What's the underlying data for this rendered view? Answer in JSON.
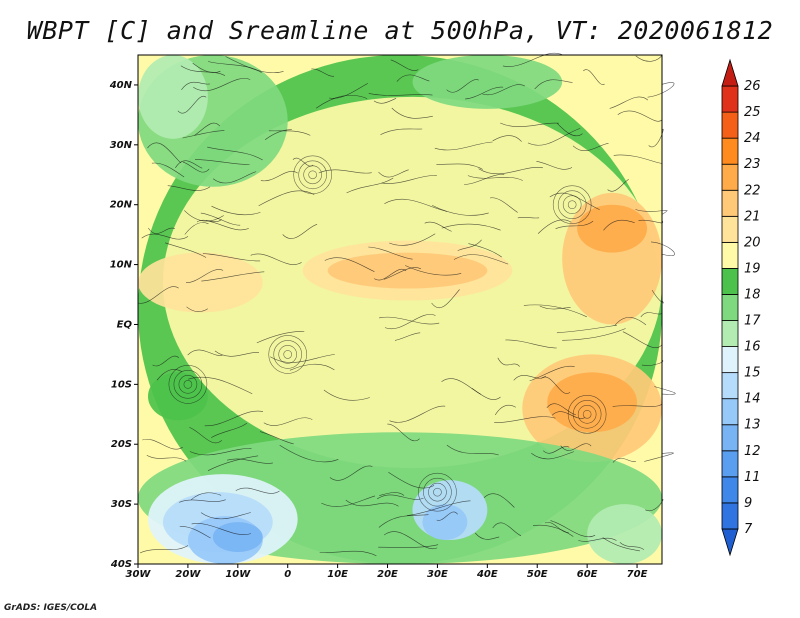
{
  "title": "WBPT [C] and Sreamline at 500hPa, VT: 2020061812",
  "credit": "GrADS: IGES/COLA",
  "map": {
    "lon_range": [
      -30,
      75
    ],
    "lat_range": [
      -40,
      45
    ],
    "lon_ticks": [
      {
        "value": -30,
        "label": "30W"
      },
      {
        "value": -20,
        "label": "20W"
      },
      {
        "value": -10,
        "label": "10W"
      },
      {
        "value": 0,
        "label": "0"
      },
      {
        "value": 10,
        "label": "10E"
      },
      {
        "value": 20,
        "label": "20E"
      },
      {
        "value": 30,
        "label": "30E"
      },
      {
        "value": 40,
        "label": "40E"
      },
      {
        "value": 50,
        "label": "50E"
      },
      {
        "value": 60,
        "label": "60E"
      },
      {
        "value": 70,
        "label": "70E"
      }
    ],
    "lat_ticks": [
      {
        "value": 40,
        "label": "40N"
      },
      {
        "value": 30,
        "label": "30N"
      },
      {
        "value": 20,
        "label": "20N"
      },
      {
        "value": 10,
        "label": "10N"
      },
      {
        "value": 0,
        "label": "EQ"
      },
      {
        "value": -10,
        "label": "10S"
      },
      {
        "value": -20,
        "label": "20S"
      },
      {
        "value": -30,
        "label": "30S"
      },
      {
        "value": -40,
        "label": "40S"
      }
    ],
    "field_regions": [
      {
        "level": 18,
        "lon": -30,
        "lat": 45,
        "w": 105,
        "h": 85
      },
      {
        "level": 19,
        "lon": -25,
        "lat": 38,
        "w": 100,
        "h": 62
      },
      {
        "level": 17,
        "lon": -30,
        "lat": 45,
        "w": 30,
        "h": 22
      },
      {
        "level": 17,
        "lon": 25,
        "lat": 45,
        "w": 30,
        "h": 9
      },
      {
        "level": 16,
        "lon": -30,
        "lat": 45,
        "w": 14,
        "h": 14
      },
      {
        "level": 20,
        "lon": 3,
        "lat": 14,
        "w": 42,
        "h": 10
      },
      {
        "level": 21,
        "lon": 8,
        "lat": 12,
        "w": 32,
        "h": 6
      },
      {
        "level": 21,
        "lon": 55,
        "lat": 22,
        "w": 20,
        "h": 22
      },
      {
        "level": 22,
        "lon": 58,
        "lat": 20,
        "w": 14,
        "h": 8
      },
      {
        "level": 21,
        "lon": 47,
        "lat": -5,
        "w": 28,
        "h": 18
      },
      {
        "level": 22,
        "lon": 52,
        "lat": -8,
        "w": 18,
        "h": 10
      },
      {
        "level": 20,
        "lon": -30,
        "lat": 12,
        "w": 25,
        "h": 10
      },
      {
        "level": 17,
        "lon": -30,
        "lat": -18,
        "w": 105,
        "h": 22
      },
      {
        "level": 15,
        "lon": -28,
        "lat": -25,
        "w": 30,
        "h": 15
      },
      {
        "level": 14,
        "lon": -25,
        "lat": -28,
        "w": 22,
        "h": 10
      },
      {
        "level": 13,
        "lon": -20,
        "lat": -32,
        "w": 15,
        "h": 8
      },
      {
        "level": 12,
        "lon": -15,
        "lat": -33,
        "w": 10,
        "h": 5
      },
      {
        "level": 14,
        "lon": 25,
        "lat": -26,
        "w": 15,
        "h": 10
      },
      {
        "level": 13,
        "lon": 27,
        "lat": -30,
        "w": 9,
        "h": 6
      },
      {
        "level": 16,
        "lon": 60,
        "lat": -30,
        "w": 15,
        "h": 10
      },
      {
        "level": 18,
        "lon": -28,
        "lat": -8,
        "w": 12,
        "h": 8
      }
    ]
  },
  "colorbar": {
    "levels": [
      "7",
      "9",
      "11",
      "12",
      "13",
      "14",
      "15",
      "16",
      "17",
      "18",
      "19",
      "20",
      "21",
      "22",
      "23",
      "24",
      "25",
      "26"
    ],
    "colors": [
      "#1f5fd1",
      "#2f74e0",
      "#3f88ea",
      "#5a9ef0",
      "#78b4f4",
      "#96c8f8",
      "#b6dcfb",
      "#dff3fd",
      "#b2ecb2",
      "#7fd97f",
      "#4cc24c",
      "#fffaa8",
      "#ffe39a",
      "#ffc978",
      "#ffab4a",
      "#ff8a1e",
      "#f56018",
      "#e0321a",
      "#c41e14"
    ]
  }
}
